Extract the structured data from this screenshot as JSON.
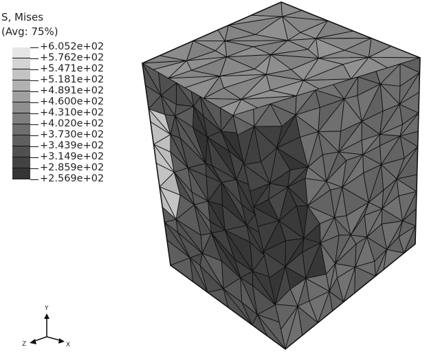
{
  "legend": {
    "title_line1": "S, Mises",
    "title_line2": "(Avg: 75%)",
    "values": [
      "+6.052e+02",
      "+5.762e+02",
      "+5.471e+02",
      "+5.181e+02",
      "+4.891e+02",
      "+4.600e+02",
      "+4.310e+02",
      "+4.020e+02",
      "+3.730e+02",
      "+3.439e+02",
      "+3.149e+02",
      "+2.859e+02",
      "+2.569e+02"
    ],
    "band_colors": [
      "#e6e6e6",
      "#d4d4d4",
      "#c3c3c3",
      "#b1b1b1",
      "#a0a0a0",
      "#8f8f8f",
      "#7f7f7f",
      "#6e6e6e",
      "#5f5f5f",
      "#505050",
      "#424242",
      "#353535"
    ]
  },
  "triad": {
    "y_label": "Y",
    "z_label": "Z",
    "x_label": "X"
  },
  "model": {
    "face_colors": {
      "top": "#8a8a8a",
      "front": "#555555",
      "right": "#6a6a6a",
      "dark_region": "#3d3d3d",
      "light_strip": "#bdbdbd",
      "edge": "#111111"
    }
  }
}
